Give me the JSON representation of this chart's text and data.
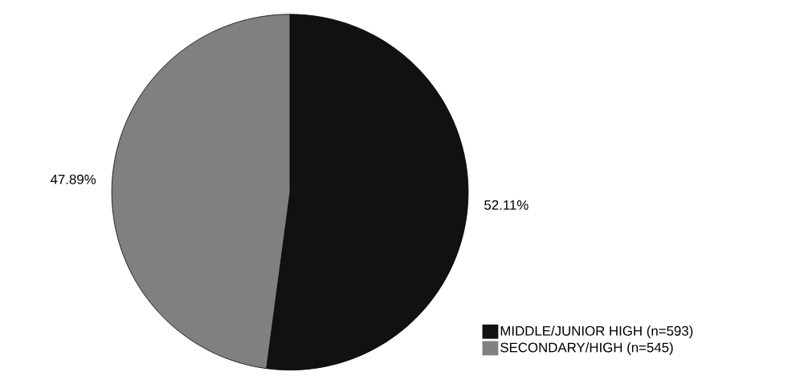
{
  "chart_data": {
    "type": "pie",
    "categories": [
      "MIDDLE/JUNIOR HIGH (n=593)",
      "SECONDARY/HIGH (n=545)"
    ],
    "values": [
      52.11,
      47.89
    ],
    "colors": [
      "#111111",
      "#808080"
    ],
    "value_labels": [
      "52.11%",
      "47.89%"
    ],
    "legend": "bottom right"
  }
}
